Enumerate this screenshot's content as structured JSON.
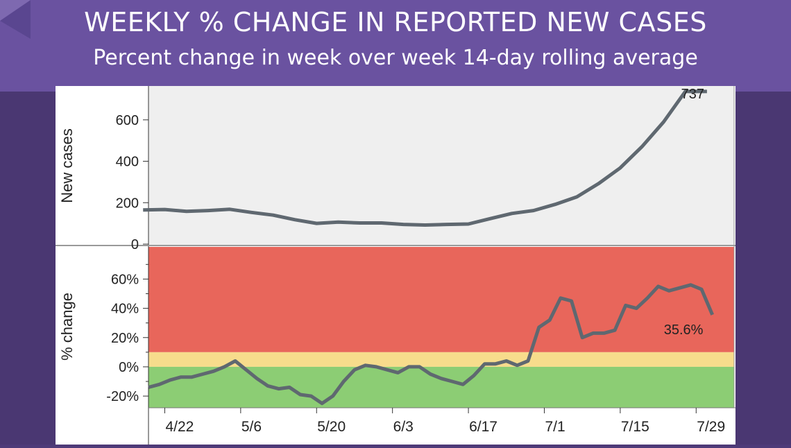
{
  "header": {
    "title": "WEEKLY % CHANGE IN REPORTED NEW CASES",
    "subtitle": "Percent change in week over week 14-day rolling average"
  },
  "colors": {
    "background": "#4e3a78",
    "header": "#6a52a0",
    "line": "#5f6870",
    "zone_red": "#e8665b",
    "zone_yellow": "#f7dc8c",
    "zone_green": "#8ccd74",
    "plot_bg": "#efefef"
  },
  "chart_data": [
    {
      "type": "line",
      "ylabel": "New cases",
      "ylim": [
        0,
        730
      ],
      "yticks": [
        0,
        200,
        400,
        600
      ],
      "ytick_labels": [
        "0",
        "200",
        "400",
        "600"
      ],
      "grid": false,
      "end_label": "737",
      "x": [
        "4/18",
        "4/22",
        "4/26",
        "4/30",
        "5/4",
        "5/8",
        "5/12",
        "5/16",
        "5/20",
        "5/24",
        "5/28",
        "6/1",
        "6/5",
        "6/9",
        "6/13",
        "6/17",
        "6/21",
        "6/25",
        "6/29",
        "7/3",
        "7/7",
        "7/11",
        "7/15",
        "7/19",
        "7/23",
        "7/27",
        "7/31"
      ],
      "values": [
        165,
        167,
        158,
        162,
        168,
        153,
        140,
        118,
        100,
        106,
        102,
        102,
        95,
        92,
        95,
        97,
        123,
        148,
        162,
        192,
        228,
        292,
        368,
        470,
        590,
        737,
        737
      ],
      "series": [
        {
          "name": "",
          "values": [
            165,
            167,
            158,
            162,
            168,
            153,
            140,
            118,
            100,
            106,
            102,
            102,
            95,
            92,
            95,
            97,
            123,
            148,
            162,
            192,
            228,
            292,
            368,
            470,
            590,
            737,
            737
          ]
        }
      ]
    },
    {
      "type": "line",
      "ylabel": "% change",
      "ylim": [
        -28,
        82
      ],
      "yticks": [
        -20,
        0,
        20,
        40,
        60
      ],
      "ytick_labels": [
        "-20%",
        "0%",
        "20%",
        "40%",
        "60%"
      ],
      "xtick_labels": [
        "4/22",
        "5/6",
        "5/20",
        "6/3",
        "6/17",
        "7/1",
        "7/15",
        "7/29"
      ],
      "xlim": [
        "4/19",
        "8/5"
      ],
      "bands": [
        {
          "from": 10,
          "to": 82,
          "color": "#e8665b"
        },
        {
          "from": 0,
          "to": 10,
          "color": "#f7dc8c"
        },
        {
          "from": -28,
          "to": 0,
          "color": "#8ccd74"
        }
      ],
      "end_label": "35.6%",
      "x": [
        "4/19",
        "4/21",
        "4/23",
        "4/25",
        "4/27",
        "4/29",
        "5/1",
        "5/3",
        "5/5",
        "5/7",
        "5/9",
        "5/11",
        "5/13",
        "5/15",
        "5/17",
        "5/19",
        "5/21",
        "5/23",
        "5/25",
        "5/27",
        "5/29",
        "5/31",
        "6/2",
        "6/4",
        "6/6",
        "6/8",
        "6/10",
        "6/12",
        "6/14",
        "6/16",
        "6/18",
        "6/20",
        "6/22",
        "6/24",
        "6/26",
        "6/28",
        "6/30",
        "7/2",
        "7/4",
        "7/6",
        "7/8",
        "7/10",
        "7/12",
        "7/14",
        "7/16",
        "7/18",
        "7/20",
        "7/22",
        "7/24",
        "7/26",
        "7/28",
        "7/30",
        "8/1"
      ],
      "values": [
        -14,
        -12,
        -9,
        -7,
        -7,
        -5,
        -3,
        0,
        4,
        -2,
        -8,
        -13,
        -15,
        -14,
        -19,
        -20,
        -25,
        -20,
        -10,
        -2,
        1,
        0,
        -2,
        -4,
        0,
        0,
        -5,
        -8,
        -10,
        -12,
        -6,
        2,
        2,
        4,
        1,
        4,
        27,
        32,
        47,
        45,
        20,
        23,
        23,
        25,
        42,
        40,
        47,
        55,
        52,
        54,
        56,
        53,
        35.6
      ],
      "series": [
        {
          "name": "",
          "values": [
            -14,
            -12,
            -9,
            -7,
            -7,
            -5,
            -3,
            0,
            4,
            -2,
            -8,
            -13,
            -15,
            -14,
            -19,
            -20,
            -25,
            -20,
            -10,
            -2,
            1,
            0,
            -2,
            -4,
            0,
            0,
            -5,
            -8,
            -10,
            -12,
            -6,
            2,
            2,
            4,
            1,
            4,
            27,
            32,
            47,
            45,
            20,
            23,
            23,
            25,
            42,
            40,
            47,
            55,
            52,
            54,
            56,
            53,
            35.6
          ]
        }
      ]
    }
  ]
}
